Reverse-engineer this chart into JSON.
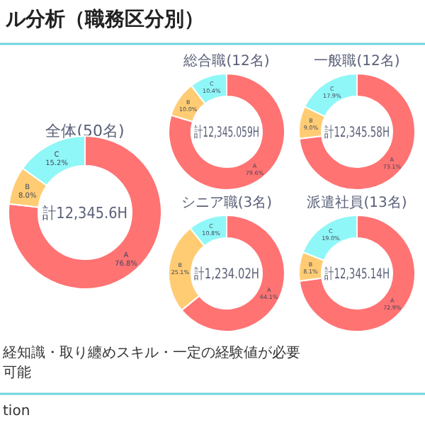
{
  "chart_data": [
    {
      "type": "donut",
      "title": "全体(50名)",
      "categories": [
        "A",
        "B",
        "C"
      ],
      "values": [
        76.8,
        8.0,
        15.2
      ],
      "value_labels": [
        "76.8%",
        "8.0%",
        "15.2%"
      ],
      "colors": [
        "#ff7373",
        "#ffcc73",
        "#8ff7f7"
      ],
      "annotations": [
        "計12,345.6H",
        "ル分析（職務区分別）",
        "経知識・取り纏めスキル・一定の経験値が必要",
        "可能",
        "tion"
      ]
    },
    {
      "type": "donut",
      "title": "総合職(12名)",
      "categories": [
        "A",
        "B",
        "C"
      ],
      "values": [
        79.6,
        10.0,
        10.4
      ],
      "value_labels": [
        "79.6%",
        "10.0%",
        "10.4%"
      ],
      "colors": [
        "#ff7373",
        "#ffcc73",
        "#8ff7f7"
      ],
      "annotations": [
        "計12,345.059H"
      ]
    },
    {
      "type": "donut",
      "title": "一般職(12名)",
      "categories": [
        "A",
        "B",
        "C"
      ],
      "values": [
        73.1,
        9.0,
        17.9
      ],
      "value_labels": [
        "73.1%",
        "9.0%",
        "17.9%"
      ],
      "colors": [
        "#ff7373",
        "#ffcc73",
        "#8ff7f7"
      ],
      "annotations": [
        "計12,345.58H"
      ]
    },
    {
      "type": "donut",
      "title": "シニア職(3名)",
      "categories": [
        "A",
        "B",
        "C"
      ],
      "values": [
        64.1,
        25.1,
        10.8
      ],
      "value_labels": [
        "64.1%",
        "25.1%",
        "10.8%"
      ],
      "colors": [
        "#ff7373",
        "#ffcc73",
        "#8ff7f7"
      ],
      "annotations": [
        "計1,234.02H"
      ]
    },
    {
      "type": "donut",
      "title": "派遣社員(13名)",
      "categories": [
        "A",
        "B",
        "C"
      ],
      "values": [
        72.9,
        8.1,
        19.0
      ],
      "value_labels": [
        "72.9%",
        "8.1%",
        "19.0%"
      ],
      "colors": [
        "#ff7373",
        "#ffcc73",
        "#8ff7f7"
      ],
      "annotations": [
        "計12,345.14H"
      ]
    }
  ]
}
